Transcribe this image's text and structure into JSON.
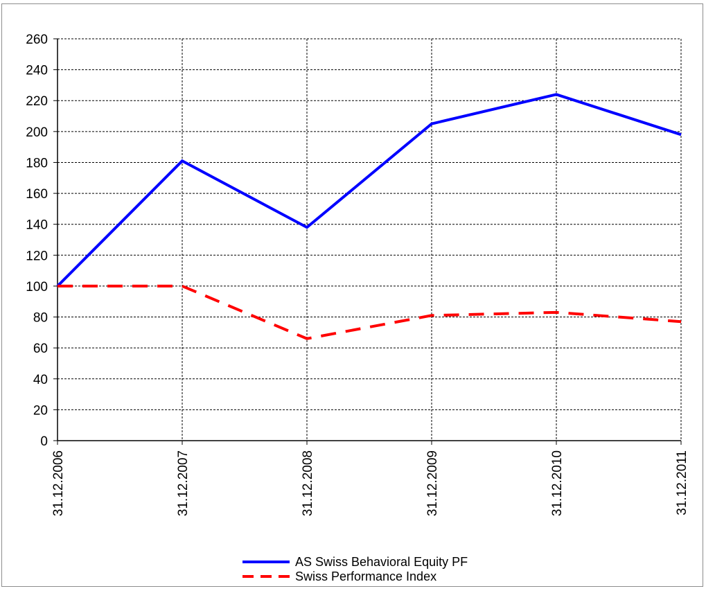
{
  "chart_data": {
    "type": "line",
    "title": "",
    "xlabel": "",
    "ylabel": "",
    "categories": [
      "31.12.2006",
      "31.12.2007",
      "31.12.2008",
      "31.12.2009",
      "31.12.2010",
      "31.12.2011"
    ],
    "ylim": [
      0,
      260
    ],
    "yticks": [
      0,
      20,
      40,
      60,
      80,
      100,
      120,
      140,
      160,
      180,
      200,
      220,
      240,
      260
    ],
    "grid": true,
    "legend_position": "bottom-center",
    "series": [
      {
        "name": "AS Swiss Behavioral Equity PF",
        "values": [
          100,
          181,
          138,
          205,
          224,
          198
        ],
        "color": "#0000ff",
        "style": "solid"
      },
      {
        "name": "Swiss Performance Index",
        "values": [
          100,
          100,
          66,
          81,
          83,
          77
        ],
        "color": "#ff0000",
        "style": "dashed"
      }
    ]
  }
}
